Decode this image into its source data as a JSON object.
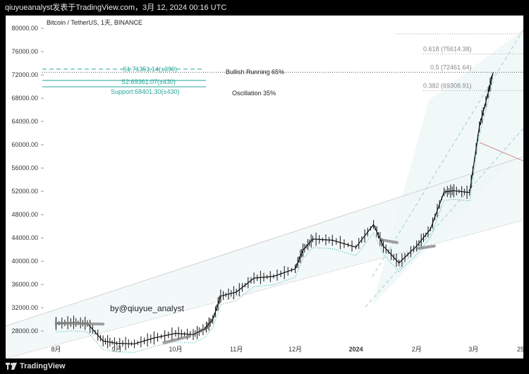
{
  "header": {
    "caption": "qiuyueanalyst发表于TradingView.com，3月 12, 2024 00:16 UTC"
  },
  "symbol": {
    "title": "Bitcoin / TetherUS, 1天, BINANCE"
  },
  "watermark": "by@qiuyue_analyst",
  "footer": {
    "brand": "TradingView"
  },
  "colors": {
    "up": "#111111",
    "down": "#111111",
    "accent": "#26a69a",
    "fib": "#888888",
    "channel": "#cccccc"
  },
  "annotations": {
    "s1": "S1:71351.14(±390)",
    "s2": "S2:69361.07(±430)",
    "support": "Support:68401.30(±430)",
    "bullish": "Bullish Running 65%",
    "oscillation": "Oscillation 35%"
  },
  "fib_levels": [
    {
      "label": "0.618 (75614.38)",
      "value": 75614.38
    },
    {
      "label": "0.5 (72461.64)",
      "value": 72461.64
    },
    {
      "label": "0.382 (69308.91)",
      "value": 69308.91
    }
  ],
  "chart_data": {
    "type": "line",
    "title": "Bitcoin / TetherUS, 1天, BINANCE",
    "y_ticks": [
      "80000.00",
      "76000.00",
      "72000.00",
      "68000.00",
      "64000.00",
      "60000.00",
      "56000.00",
      "52000.00",
      "48000.00",
      "44000.00",
      "40000.00",
      "36000.00",
      "32000.00",
      "28000.00"
    ],
    "x_ticks": [
      "8月",
      "9月",
      "10月",
      "11月",
      "12月",
      "2024",
      "2月",
      "3月",
      "25"
    ],
    "ylim": [
      24500,
      82200
    ],
    "x": [
      "2023-08-01",
      "2023-08-10",
      "2023-08-17",
      "2023-08-25",
      "2023-09-01",
      "2023-09-10",
      "2023-09-20",
      "2023-10-01",
      "2023-10-10",
      "2023-10-16",
      "2023-10-20",
      "2023-10-24",
      "2023-11-01",
      "2023-11-10",
      "2023-11-20",
      "2023-12-01",
      "2023-12-05",
      "2023-12-10",
      "2023-12-20",
      "2024-01-01",
      "2024-01-10",
      "2024-01-15",
      "2024-01-23",
      "2024-02-01",
      "2024-02-08",
      "2024-02-15",
      "2024-02-20",
      "2024-02-28",
      "2024-03-04",
      "2024-03-08",
      "2024-03-11"
    ],
    "series": [
      {
        "values": [
          29300,
          29500,
          29300,
          26300,
          25900,
          25800,
          26800,
          27600,
          27400,
          28400,
          30000,
          34000,
          34700,
          37100,
          37400,
          38700,
          41900,
          43800,
          43600,
          42400,
          46300,
          42600,
          39700,
          42600,
          45500,
          51900,
          52100,
          51800,
          63100,
          68300,
          72400
        ]
      }
    ]
  }
}
